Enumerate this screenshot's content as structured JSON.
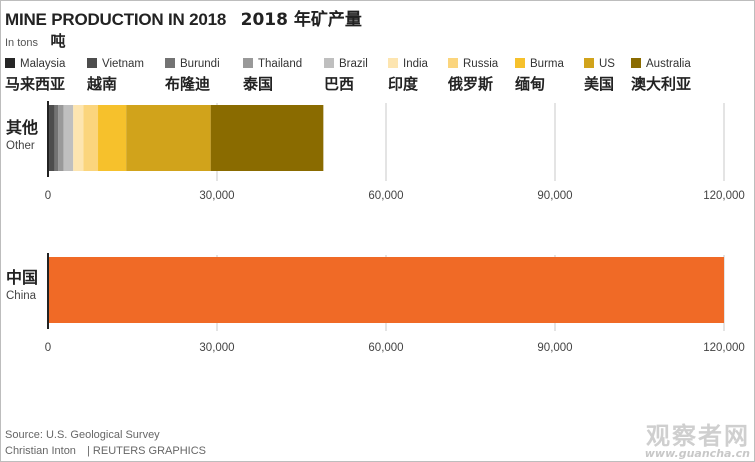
{
  "header": {
    "title": "MINE PRODUCTION IN 2018",
    "title_cn": "2018 年矿产量",
    "unit": "In tons",
    "unit_cn": "吨"
  },
  "legend": [
    {
      "label": "Malaysia",
      "label_cn": "马来西亚",
      "color": "#262626"
    },
    {
      "label": "Vietnam",
      "label_cn": "越南",
      "color": "#4d4d4d"
    },
    {
      "label": "Burundi",
      "label_cn": "布隆迪",
      "color": "#737373"
    },
    {
      "label": "Thailand",
      "label_cn": "泰国",
      "color": "#999999"
    },
    {
      "label": "Brazil",
      "label_cn": "巴西",
      "color": "#bfbfbf"
    },
    {
      "label": "India",
      "label_cn": "印度",
      "color": "#fde5b0"
    },
    {
      "label": "Russia",
      "label_cn": "俄罗斯",
      "color": "#fbd57d"
    },
    {
      "label": "Burma",
      "label_cn": "缅甸",
      "color": "#f6c12c"
    },
    {
      "label": "US",
      "label_cn": "美国",
      "color": "#d1a31b"
    },
    {
      "label": "Australia",
      "label_cn": "澳大利亚",
      "color": "#8a6b00"
    }
  ],
  "rows": [
    {
      "label": "Other",
      "label_cn": "其他"
    },
    {
      "label": "China",
      "label_cn": "中国"
    }
  ],
  "chart_data": [
    {
      "type": "bar",
      "orientation": "horizontal",
      "stacked": true,
      "category": "Other",
      "series": [
        {
          "name": "Malaysia",
          "value": 180
        },
        {
          "name": "Vietnam",
          "value": 1000
        },
        {
          "name": "Burundi",
          "value": 600
        },
        {
          "name": "Thailand",
          "value": 1000
        },
        {
          "name": "Brazil",
          "value": 1700
        },
        {
          "name": "India",
          "value": 1800
        },
        {
          "name": "Russia",
          "value": 2600
        },
        {
          "name": "Burma",
          "value": 5000
        },
        {
          "name": "US",
          "value": 15000
        },
        {
          "name": "Australia",
          "value": 20000
        }
      ],
      "xlim": [
        0,
        120000
      ],
      "ticks": [
        "0",
        "30,000",
        "60,000",
        "90,000",
        "120,000"
      ],
      "tick_values": [
        0,
        30000,
        60000,
        90000,
        120000
      ]
    },
    {
      "type": "bar",
      "orientation": "horizontal",
      "category": "China",
      "values": [
        120000
      ],
      "color": "#f06a26",
      "xlim": [
        0,
        120000
      ],
      "ticks": [
        "0",
        "30,000",
        "60,000",
        "90,000",
        "120,000"
      ],
      "tick_values": [
        0,
        30000,
        60000,
        90000,
        120000
      ]
    }
  ],
  "footer": {
    "source": "Source: U.S. Geological Survey",
    "credit": "Christian Inton",
    "agency": "| REUTERS GRAPHICS"
  },
  "watermark": {
    "text_cn": "观察者网",
    "url": "www.guancha.cn"
  }
}
